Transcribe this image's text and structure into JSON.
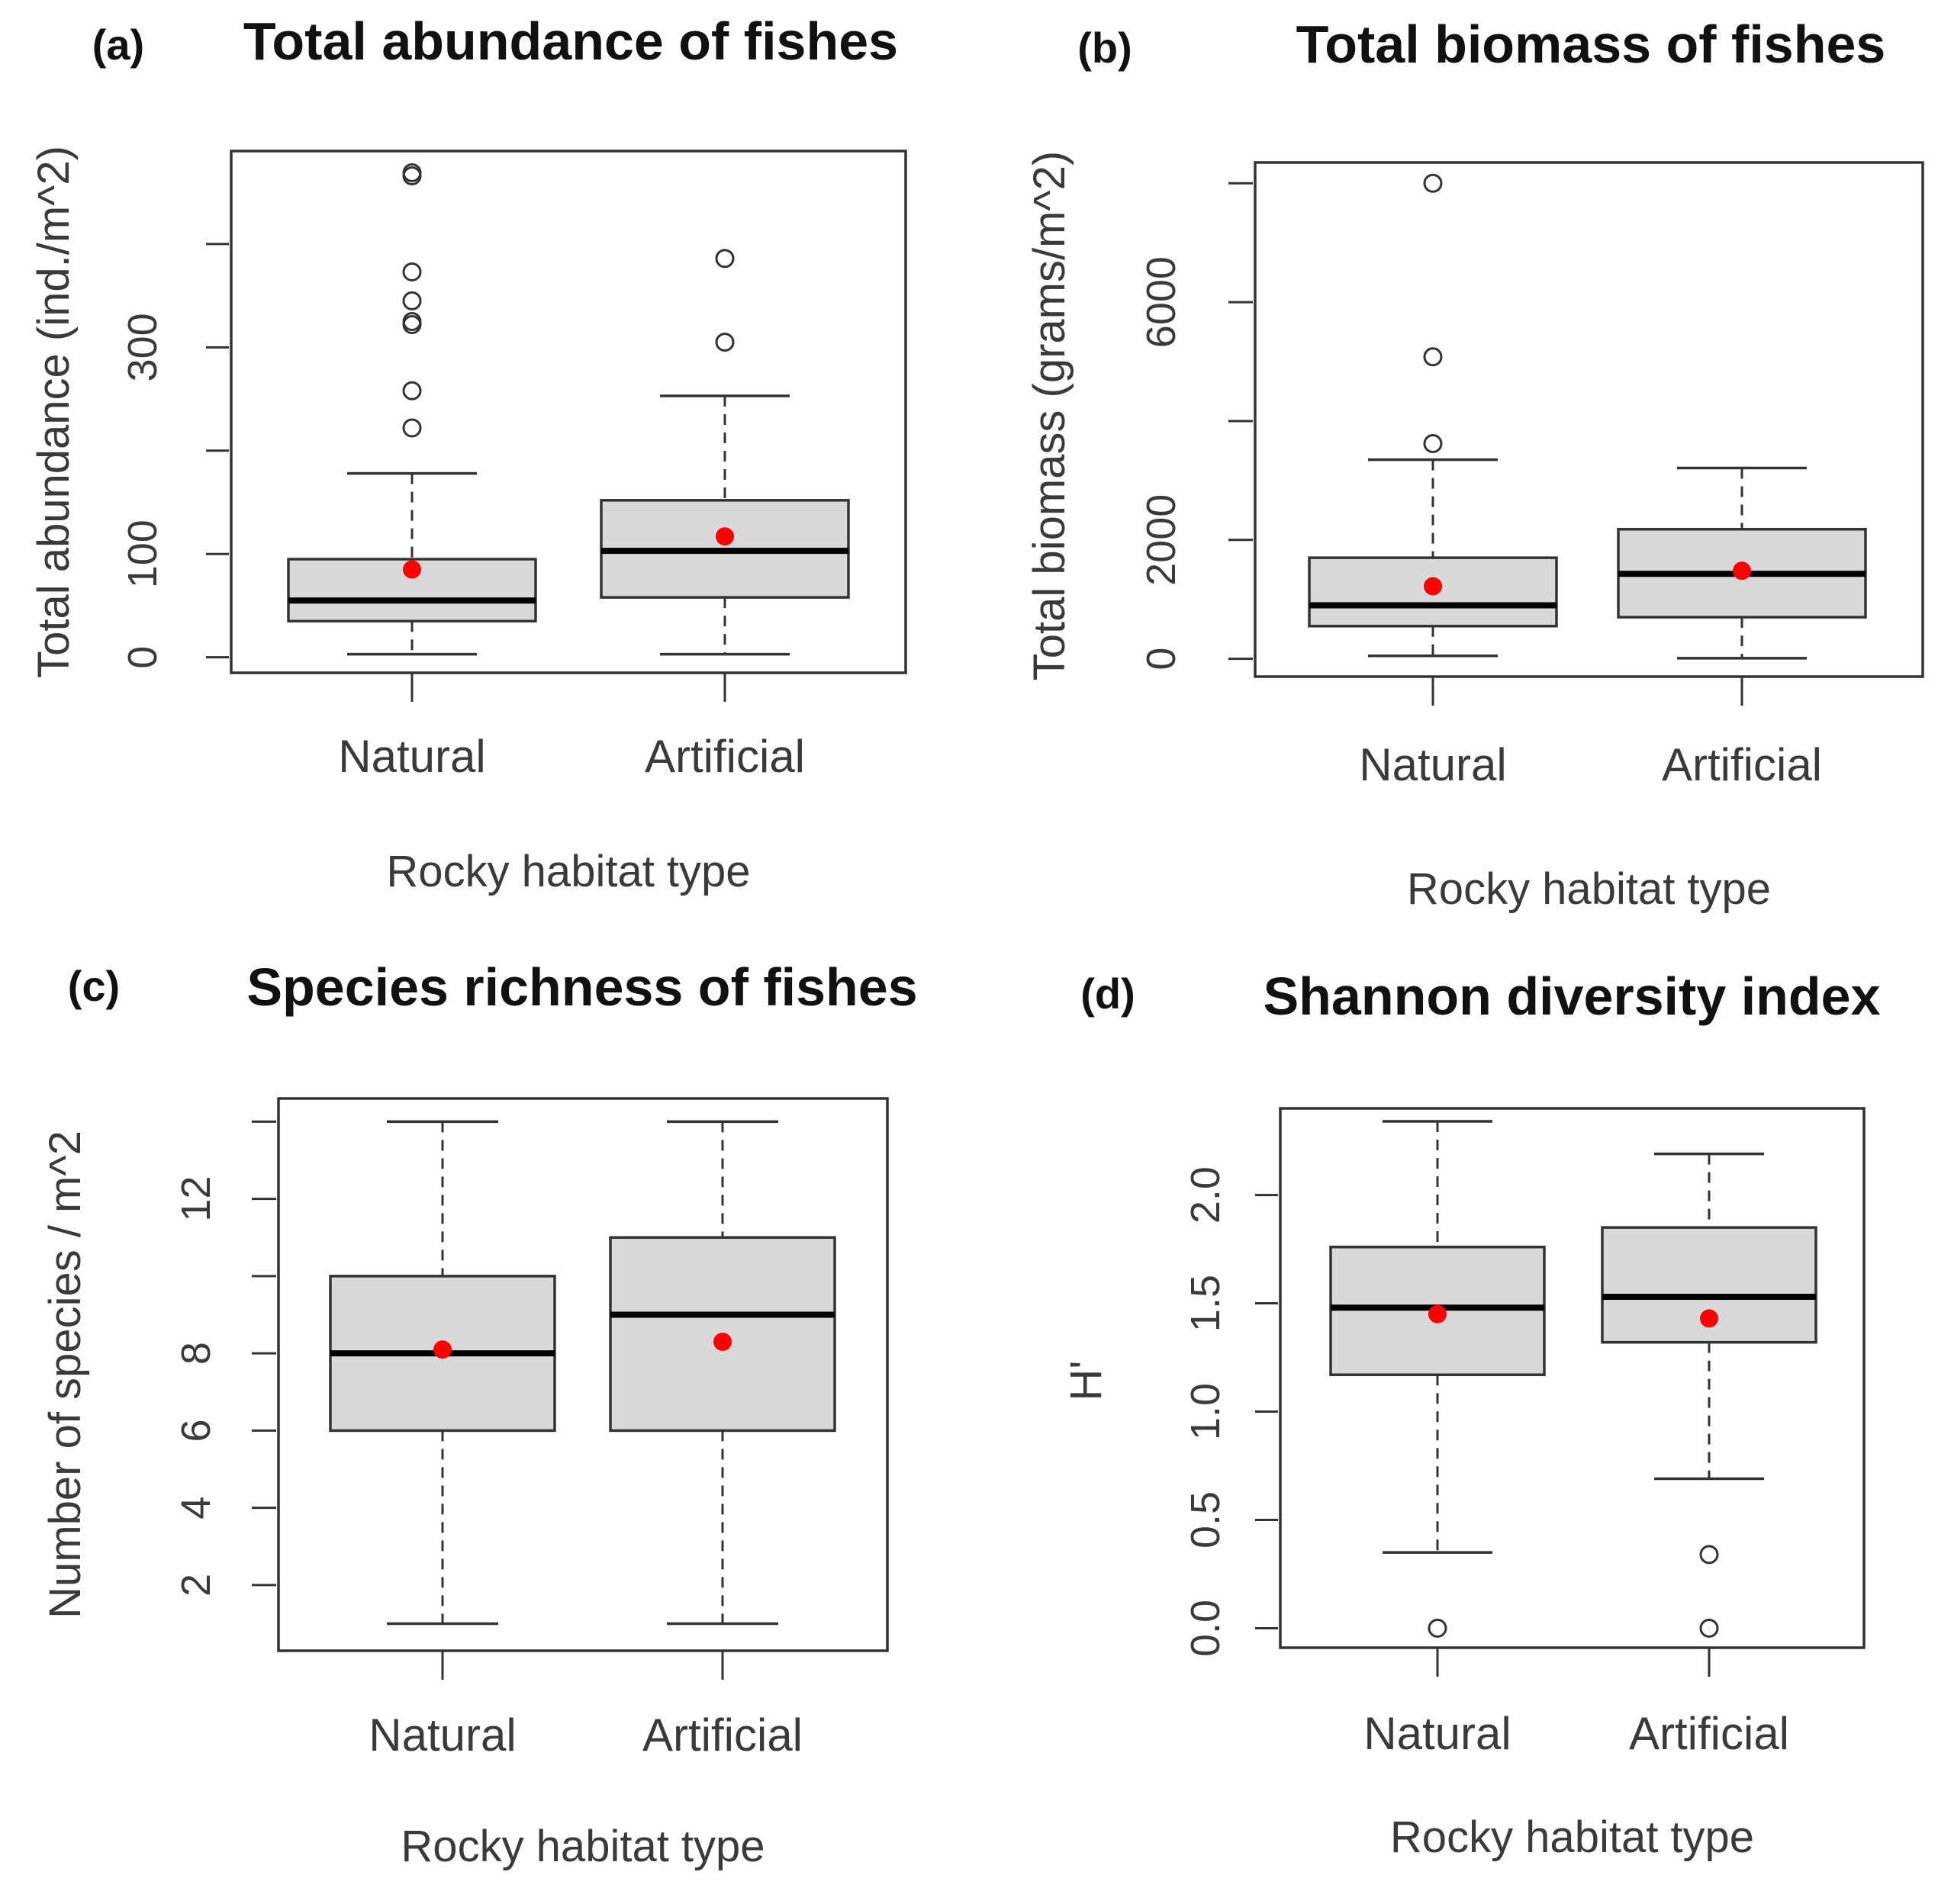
{
  "chart_data": [
    {
      "type": "box",
      "panel": "(a)",
      "title": "Total abundance of fishes",
      "xlabel": "Rocky habitat type",
      "ylabel": "Total abundance (ind./m^2)",
      "ylim": [
        -15,
        490
      ],
      "yticks": [
        0,
        100,
        200,
        300,
        400
      ],
      "ytick_labels": [
        "0",
        "100",
        "",
        "300",
        ""
      ],
      "categories": [
        "Natural",
        "Artificial"
      ],
      "boxes": [
        {
          "whisker_low": 3,
          "q1": 35,
          "median": 55,
          "q3": 95,
          "whisker_high": 178,
          "mean": 85,
          "outliers": [
            222,
            258,
            322,
            325,
            345,
            373,
            466,
            469
          ]
        },
        {
          "whisker_low": 3,
          "q1": 58,
          "median": 103,
          "q3": 152,
          "whisker_high": 253,
          "mean": 117,
          "outliers": [
            305,
            386
          ]
        }
      ]
    },
    {
      "type": "box",
      "panel": "(b)",
      "title": "Total biomass of fishes",
      "xlabel": "Rocky habitat type",
      "ylabel": "Total biomass (grams/m^2)",
      "ylim": [
        -300,
        8350
      ],
      "yticks": [
        0,
        2000,
        4000,
        6000,
        8000
      ],
      "ytick_labels": [
        "0",
        "2000",
        "",
        "6000",
        ""
      ],
      "categories": [
        "Natural",
        "Artificial"
      ],
      "boxes": [
        {
          "whisker_low": 50,
          "q1": 550,
          "median": 900,
          "q3": 1700,
          "whisker_high": 3350,
          "mean": 1220,
          "outliers": [
            3620,
            5080,
            8000
          ]
        },
        {
          "whisker_low": 10,
          "q1": 700,
          "median": 1430,
          "q3": 2180,
          "whisker_high": 3210,
          "mean": 1480,
          "outliers": []
        }
      ]
    },
    {
      "type": "box",
      "panel": "(c)",
      "title": "Species richness of fishes",
      "xlabel": "Rocky habitat type",
      "ylabel": "Number of species / m^2",
      "ylim": [
        0.3,
        14.6
      ],
      "yticks": [
        2,
        4,
        6,
        8,
        10,
        12,
        14
      ],
      "ytick_labels": [
        "2",
        "4",
        "6",
        "8",
        "",
        "12",
        ""
      ],
      "categories": [
        "Natural",
        "Artificial"
      ],
      "boxes": [
        {
          "whisker_low": 1,
          "q1": 6,
          "median": 8,
          "q3": 10,
          "whisker_high": 14,
          "mean": 8.1,
          "outliers": []
        },
        {
          "whisker_low": 1,
          "q1": 6,
          "median": 9,
          "q3": 11,
          "whisker_high": 14,
          "mean": 8.3,
          "outliers": []
        }
      ]
    },
    {
      "type": "box",
      "panel": "(d)",
      "title": "Shannon diversity index",
      "xlabel": "Rocky habitat type",
      "ylabel": "H'",
      "ylim": [
        -0.09,
        2.4
      ],
      "yticks": [
        0.0,
        0.5,
        1.0,
        1.5,
        2.0
      ],
      "ytick_labels": [
        "0.0",
        "0.5",
        "1.0",
        "1.5",
        "2.0"
      ],
      "categories": [
        "Natural",
        "Artificial"
      ],
      "boxes": [
        {
          "whisker_low": 0.35,
          "q1": 1.17,
          "median": 1.48,
          "q3": 1.76,
          "whisker_high": 2.34,
          "mean": 1.45,
          "outliers": [
            0.0
          ]
        },
        {
          "whisker_low": 0.69,
          "q1": 1.32,
          "median": 1.53,
          "q3": 1.85,
          "whisker_high": 2.19,
          "mean": 1.43,
          "outliers": [
            0.0,
            0.34
          ]
        }
      ]
    }
  ]
}
